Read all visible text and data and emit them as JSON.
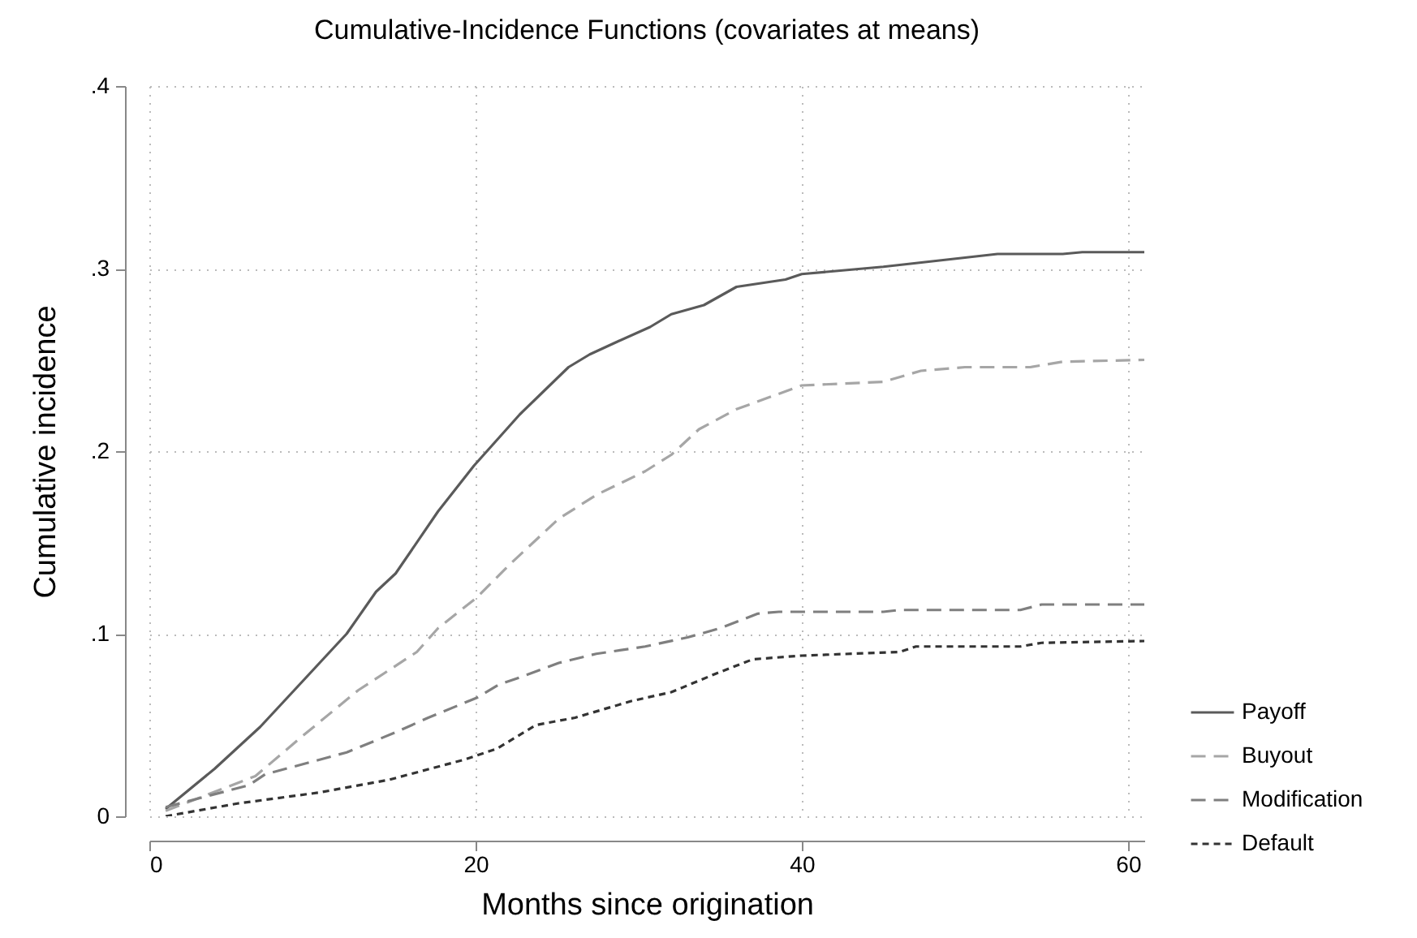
{
  "chart_data": {
    "type": "line",
    "title": "Cumulative-Incidence Functions (covariates at means)",
    "xlabel": "Months since origination",
    "ylabel": "Cumulative incidence",
    "xlim": [
      0,
      61
    ],
    "xticks": [
      0,
      20,
      40,
      60
    ],
    "ylim": [
      0,
      0.4
    ],
    "yticks": [
      {
        "value": 0,
        "label": "0"
      },
      {
        "value": 0.1,
        "label": ".1"
      },
      {
        "value": 0.2,
        "label": ".2"
      },
      {
        "value": 0.3,
        "label": ".3"
      },
      {
        "value": 0.4,
        "label": ".4"
      }
    ],
    "grid": true,
    "legend": "bottom right",
    "series": [
      {
        "name": "Payoff",
        "color": "#5a5a5a",
        "line_style": "solid",
        "x": [
          1,
          4,
          6.8,
          9.4,
          12.1,
          13.9,
          15.1,
          17.7,
          19.9,
          22.7,
          25.7,
          27,
          28.7,
          30.7,
          32,
          34,
          36,
          39,
          40,
          45,
          50,
          52,
          56,
          57.2,
          61
        ],
        "values": [
          0.004,
          0.026,
          0.049,
          0.074,
          0.1,
          0.123,
          0.133,
          0.167,
          0.192,
          0.22,
          0.246,
          0.253,
          0.26,
          0.268,
          0.275,
          0.28,
          0.29,
          0.294,
          0.297,
          0.301,
          0.306,
          0.308,
          0.308,
          0.309,
          0.309
        ]
      },
      {
        "name": "Buyout",
        "color": "#a6a6a6",
        "line_style": "dashed",
        "x": [
          1,
          6.5,
          9.4,
          12.8,
          16.4,
          17.7,
          20.1,
          22.1,
          25.1,
          27.4,
          30.4,
          32,
          33.7,
          36,
          40,
          45,
          47.3,
          50,
          54,
          56,
          61
        ],
        "values": [
          0.003,
          0.022,
          0.044,
          0.069,
          0.09,
          0.103,
          0.12,
          0.138,
          0.163,
          0.176,
          0.189,
          0.198,
          0.212,
          0.223,
          0.236,
          0.238,
          0.244,
          0.246,
          0.246,
          0.249,
          0.25
        ]
      },
      {
        "name": "Modification",
        "color": "#7f7f7f",
        "line_style": "dashed",
        "x": [
          1,
          3.1,
          6.1,
          7.1,
          12.1,
          15.1,
          17.1,
          20.1,
          21.4,
          23,
          25.1,
          27.4,
          30.4,
          33,
          35,
          37.3,
          38.6,
          45,
          46,
          50,
          53.4,
          54.7,
          61
        ],
        "values": [
          0.005,
          0.01,
          0.017,
          0.023,
          0.035,
          0.046,
          0.054,
          0.065,
          0.072,
          0.077,
          0.084,
          0.089,
          0.093,
          0.098,
          0.103,
          0.111,
          0.112,
          0.112,
          0.113,
          0.113,
          0.113,
          0.116,
          0.116
        ]
      },
      {
        "name": "Default",
        "color": "#333333",
        "line_style": "dotted",
        "x": [
          1,
          5.4,
          10.4,
          14.7,
          19.3,
          21.3,
          23.7,
          26.1,
          29.5,
          32,
          34.7,
          37,
          40,
          46,
          47,
          53.4,
          54.7,
          61
        ],
        "values": [
          0,
          0.007,
          0.013,
          0.02,
          0.031,
          0.037,
          0.05,
          0.054,
          0.063,
          0.068,
          0.078,
          0.086,
          0.088,
          0.09,
          0.093,
          0.093,
          0.095,
          0.096
        ]
      }
    ]
  }
}
